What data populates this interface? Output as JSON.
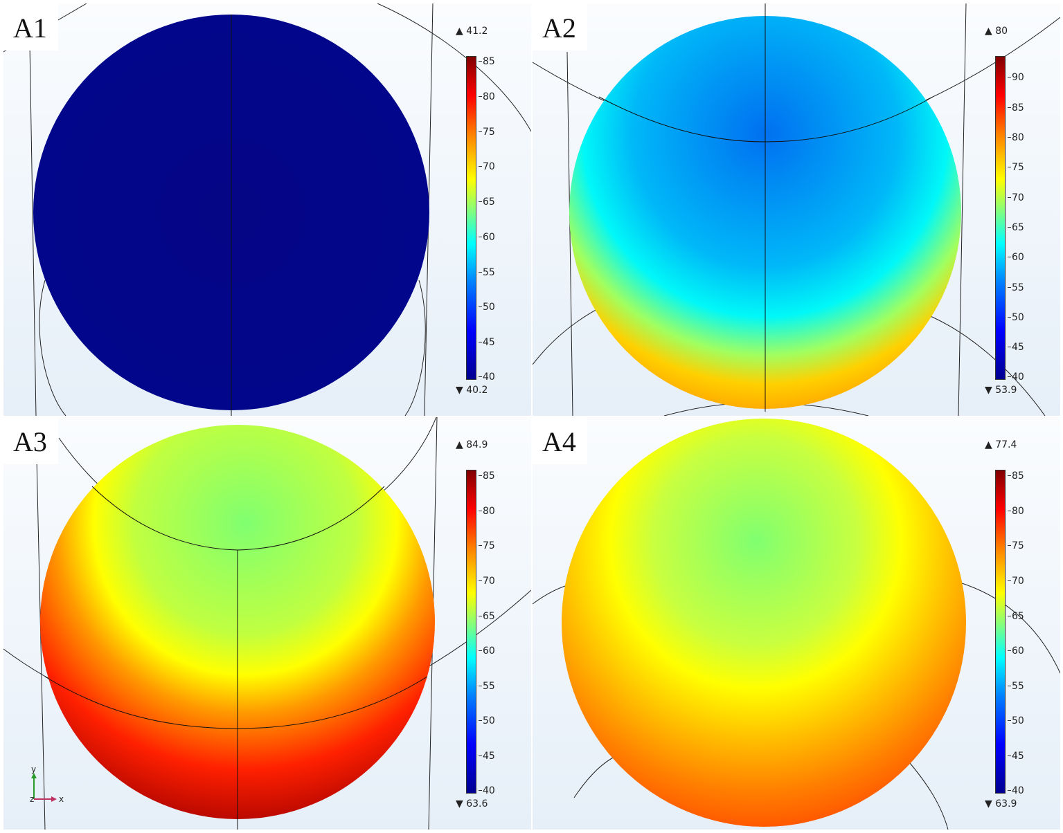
{
  "panels": [
    {
      "label": "A1",
      "max": "41.2",
      "min": "40.2",
      "ticks": [
        "85",
        "80",
        "75",
        "70",
        "65",
        "60",
        "55",
        "50",
        "45",
        "40"
      ]
    },
    {
      "label": "A2",
      "max": "80",
      "min": "53.9",
      "ticks": [
        "90",
        "85",
        "80",
        "75",
        "70",
        "65",
        "60",
        "55",
        "50",
        "45",
        "40"
      ]
    },
    {
      "label": "A3",
      "max": "84.9",
      "min": "63.6",
      "ticks": [
        "85",
        "80",
        "75",
        "70",
        "65",
        "60",
        "55",
        "50",
        "45",
        "40"
      ]
    },
    {
      "label": "A4",
      "max": "77.4",
      "min": "63.9",
      "ticks": [
        "85",
        "80",
        "75",
        "70",
        "65",
        "60",
        "55",
        "50",
        "45",
        "40"
      ]
    }
  ],
  "axes": {
    "y": "y",
    "x": "x",
    "z": "z"
  },
  "colors": {
    "low": "#00008f",
    "mid": "#00ffff",
    "high": "#800000"
  }
}
